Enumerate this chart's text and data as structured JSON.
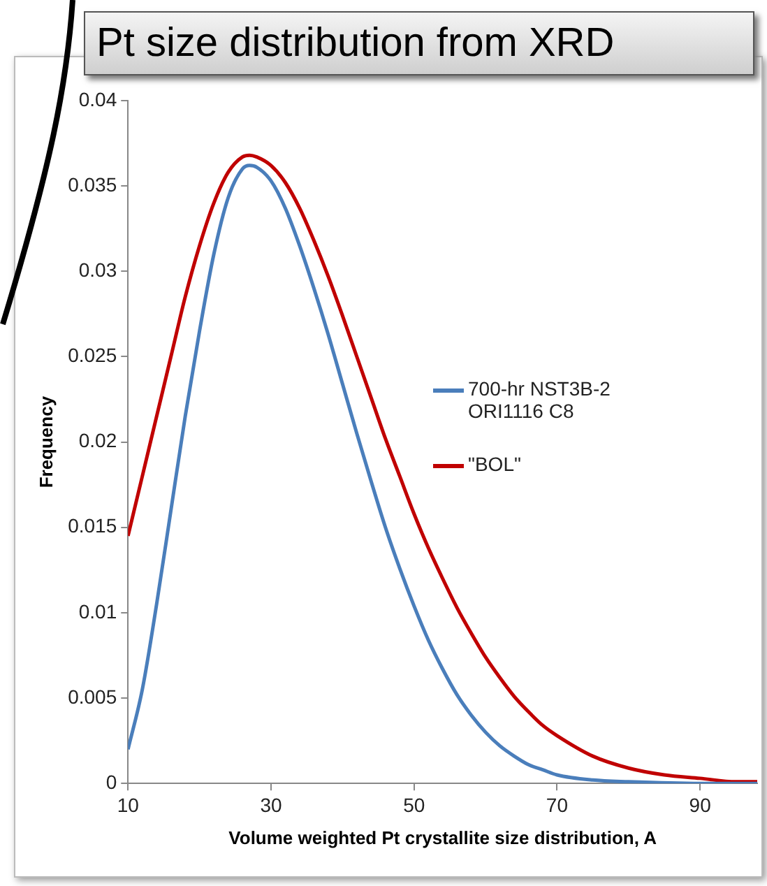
{
  "chart_data": {
    "type": "line",
    "title": "Pt size distribution from XRD",
    "xlabel": "Volume weighted Pt crystallite size distribution, A",
    "ylabel": "Frequency",
    "xlim": [
      10,
      98
    ],
    "xticks": [
      10,
      30,
      50,
      70,
      90
    ],
    "ylim": [
      0,
      0.04
    ],
    "yticks": [
      0,
      0.005,
      0.01,
      0.015,
      0.02,
      0.025,
      0.03,
      0.035,
      0.04
    ],
    "grid": false,
    "legend": "right",
    "marker": "none",
    "line_style": "solid",
    "series": [
      {
        "name": "700-hr NST3B-2 ORI1116 C8",
        "color": "#4a7ebb",
        "x": [
          10,
          12,
          14,
          16,
          18,
          20,
          22,
          24,
          26,
          27,
          28,
          30,
          32,
          34,
          36,
          38,
          40,
          42,
          44,
          46,
          48,
          50,
          52,
          54,
          56,
          58,
          60,
          62,
          64,
          66,
          68,
          70,
          75,
          80,
          90,
          98
        ],
        "values": [
          0.002,
          0.0055,
          0.0105,
          0.016,
          0.0215,
          0.0265,
          0.031,
          0.0343,
          0.036,
          0.0362,
          0.0361,
          0.0353,
          0.0337,
          0.0315,
          0.029,
          0.0263,
          0.0234,
          0.0205,
          0.0177,
          0.015,
          0.0126,
          0.0104,
          0.0084,
          0.0067,
          0.0052,
          0.004,
          0.003,
          0.0022,
          0.0016,
          0.0011,
          0.0008,
          0.0005,
          0.0002,
          0.0001,
          0,
          0
        ]
      },
      {
        "name": "\"BOL\"",
        "color": "#c00000",
        "x": [
          10,
          12,
          14,
          16,
          18,
          20,
          22,
          24,
          26,
          27,
          28,
          30,
          32,
          34,
          36,
          38,
          40,
          42,
          44,
          46,
          48,
          50,
          52,
          54,
          56,
          58,
          60,
          62,
          64,
          66,
          68,
          70,
          75,
          80,
          85,
          90,
          95,
          98
        ],
        "values": [
          0.0145,
          0.018,
          0.0215,
          0.025,
          0.0285,
          0.0315,
          0.034,
          0.0358,
          0.0367,
          0.0368,
          0.0367,
          0.0362,
          0.0352,
          0.0337,
          0.0318,
          0.0297,
          0.0274,
          0.025,
          0.0226,
          0.0202,
          0.018,
          0.0158,
          0.0138,
          0.012,
          0.0103,
          0.0088,
          0.0074,
          0.0062,
          0.0051,
          0.0042,
          0.0034,
          0.0028,
          0.0016,
          0.0009,
          0.0005,
          0.0003,
          0.0001,
          0.0001
        ]
      }
    ]
  }
}
